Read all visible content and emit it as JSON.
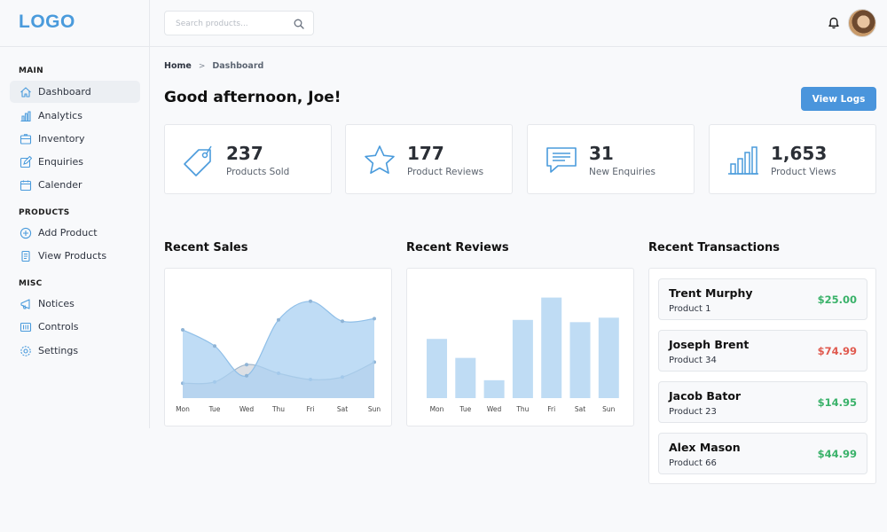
{
  "header": {
    "logo": "LOGO",
    "search_placeholder": "Search products...",
    "icons": {
      "search": "search-icon",
      "bell": "bell-icon"
    }
  },
  "sidebar": {
    "sections": [
      {
        "title": "MAIN",
        "items": [
          {
            "label": "Dashboard",
            "icon": "home-icon",
            "active": true
          },
          {
            "label": "Analytics",
            "icon": "bar-chart-icon"
          },
          {
            "label": "Inventory",
            "icon": "box-icon"
          },
          {
            "label": "Enquiries",
            "icon": "edit-icon"
          },
          {
            "label": "Calender",
            "icon": "calendar-icon"
          }
        ]
      },
      {
        "title": "PRODUCTS",
        "items": [
          {
            "label": "Add Product",
            "icon": "plus-circle-icon"
          },
          {
            "label": "View Products",
            "icon": "file-list-icon"
          }
        ]
      },
      {
        "title": "MISC",
        "items": [
          {
            "label": "Notices",
            "icon": "megaphone-icon"
          },
          {
            "label": "Controls",
            "icon": "sliders-icon"
          },
          {
            "label": "Settings",
            "icon": "gear-icon"
          }
        ]
      }
    ]
  },
  "breadcrumb": {
    "home": "Home",
    "separator": ">",
    "current": "Dashboard"
  },
  "greeting": "Good afternoon, Joe!",
  "view_logs_label": "View Logs",
  "stats": [
    {
      "value": "237",
      "label": "Products Sold",
      "icon": "tag-icon"
    },
    {
      "value": "177",
      "label": "Product Reviews",
      "icon": "star-icon"
    },
    {
      "value": "31",
      "label": "New Enquiries",
      "icon": "chat-icon"
    },
    {
      "value": "1,653",
      "label": "Product Views",
      "icon": "bar-chart-icon"
    }
  ],
  "panels": {
    "sales_title": "Recent Sales",
    "reviews_title": "Recent Reviews",
    "transactions_title": "Recent Transactions"
  },
  "chart_data": [
    {
      "type": "area",
      "categories": [
        "Mon",
        "Tue",
        "Wed",
        "Thu",
        "Fri",
        "Sat",
        "Sun"
      ],
      "series": [
        {
          "values": [
            55,
            42,
            18,
            63,
            78,
            62,
            64
          ]
        },
        {
          "values": [
            12,
            13,
            27,
            20,
            15,
            17,
            29
          ]
        }
      ],
      "ylim": [
        0,
        90
      ],
      "grid": false,
      "colors": [
        "#a9d0f1",
        "#d9dde2"
      ]
    },
    {
      "type": "bar",
      "categories": [
        "Mon",
        "Tue",
        "Wed",
        "Thu",
        "Fri",
        "Sat",
        "Sun"
      ],
      "values": [
        53,
        36,
        16,
        70,
        90,
        68,
        72
      ],
      "ylim": [
        0,
        100
      ],
      "grid": false,
      "colors": [
        "#bfdcf4"
      ]
    }
  ],
  "transactions": [
    {
      "name": "Trent Murphy",
      "product": "Product 1",
      "amount": "$25.00",
      "status": "positive"
    },
    {
      "name": "Joseph Brent",
      "product": "Product 34",
      "amount": "$74.99",
      "status": "negative"
    },
    {
      "name": "Jacob Bator",
      "product": "Product 23",
      "amount": "$14.95",
      "status": "positive"
    },
    {
      "name": "Alex Mason",
      "product": "Product 66",
      "amount": "$44.99",
      "status": "positive"
    }
  ],
  "colors": {
    "accent": "#4a95dc",
    "positive": "#3ab26a",
    "negative": "#e05a4f",
    "icon_blue": "#4a9bdc"
  }
}
